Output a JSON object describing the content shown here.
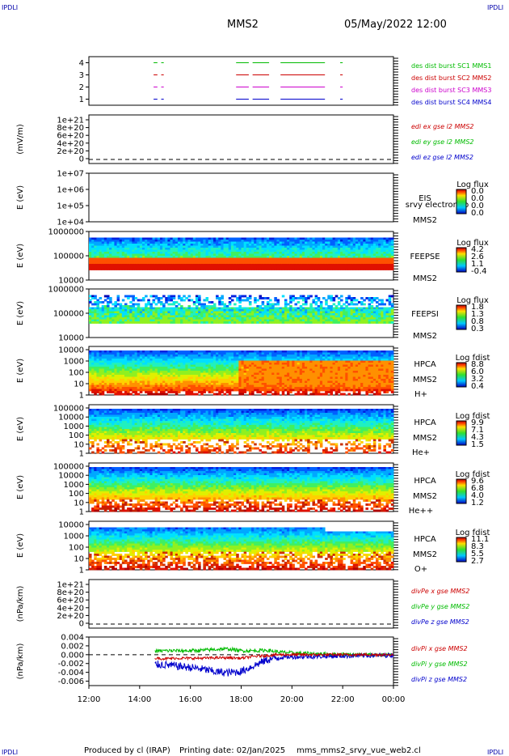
{
  "header": {
    "corner_tl": "IPDLI",
    "corner_tr": "IPDLI",
    "corner_bl": "IPDLI",
    "corner_br": "IPDLI",
    "title": "MMS2",
    "date": "05/May/2022 12:00"
  },
  "footer": {
    "produced_by": "Produced by cl (IRAP)",
    "printing_date": "Printing date: 02/Jan/2025",
    "file": "mms_mms2_srvy_vue_web2.cl"
  },
  "colors": {
    "blue": "#0000cc",
    "red": "#cc0000",
    "magenta": "#cc00cc",
    "green": "#00bb00",
    "legend_blue": "#0000c8",
    "legend_red": "#c80000",
    "legend_green": "#00b400"
  },
  "chart_data": [
    {
      "type": "scatter",
      "panel": "burst",
      "ylim": [
        0.5,
        4.5
      ],
      "yticks": [
        "1",
        "2",
        "3",
        "4"
      ],
      "series": [
        {
          "name": "des dist burst SC1 MMS1",
          "color": "#00bb00",
          "y": 4,
          "segments": [
            [
              14.55,
              14.7
            ],
            [
              14.85,
              14.95
            ],
            [
              17.8,
              18.3
            ],
            [
              18.45,
              19.1
            ],
            [
              19.55,
              21.3
            ],
            [
              21.9,
              22.0
            ]
          ]
        },
        {
          "name": "des dist burst SC2 MMS2",
          "color": "#cc0000",
          "y": 3,
          "segments": [
            [
              14.55,
              14.7
            ],
            [
              14.85,
              14.95
            ],
            [
              17.8,
              18.3
            ],
            [
              18.45,
              19.1
            ],
            [
              19.55,
              21.3
            ],
            [
              21.9,
              22.0
            ]
          ]
        },
        {
          "name": "des dist burst SC3 MMS3",
          "color": "#cc00cc",
          "y": 2,
          "segments": [
            [
              14.55,
              14.7
            ],
            [
              14.85,
              14.95
            ],
            [
              17.8,
              18.3
            ],
            [
              18.45,
              19.1
            ],
            [
              19.55,
              21.3
            ],
            [
              21.9,
              22.0
            ]
          ]
        },
        {
          "name": "des dist burst SC4 MMS4",
          "color": "#0000cc",
          "y": 1,
          "segments": [
            [
              14.55,
              14.7
            ],
            [
              14.85,
              14.95
            ],
            [
              17.8,
              18.3
            ],
            [
              18.45,
              19.1
            ],
            [
              19.55,
              21.3
            ],
            [
              21.9,
              22.0
            ]
          ]
        }
      ]
    },
    {
      "type": "line",
      "panel": "edi",
      "ylabel": "(mV/m)",
      "yticks": [
        "0",
        "2e+20",
        "4e+20",
        "6e+20",
        "8e+20",
        "1e+21"
      ],
      "series": [
        {
          "name": "edi ex gse l2 MMS2",
          "color": "#cc0000"
        },
        {
          "name": "edi ey gse l2 MMS2",
          "color": "#00bb00"
        },
        {
          "name": "edi ez gse l2 MMS2",
          "color": "#0000cc"
        }
      ]
    },
    {
      "type": "heatmap",
      "panel": "eis",
      "ylabel": "E (eV)",
      "yticks": [
        "1e+04",
        "1e+05",
        "1e+06",
        "1e+07"
      ],
      "labels": [
        "EIS",
        "srvy electron to",
        "MMS2"
      ],
      "colorbar": {
        "title": "Log flux",
        "ticks": [
          "0.0",
          "0.0",
          "0.0",
          "0.0"
        ]
      }
    },
    {
      "type": "heatmap",
      "panel": "feepse",
      "ylabel": "E (eV)",
      "yticks": [
        "10000",
        "100000",
        "1000000"
      ],
      "labels": [
        "FEEPSE",
        "MMS2"
      ],
      "colorbar": {
        "title": "Log flux",
        "ticks": [
          "4.2",
          "2.6",
          "1.1",
          "-0.4"
        ]
      }
    },
    {
      "type": "heatmap",
      "panel": "feepsi",
      "ylabel": "E (eV)",
      "yticks": [
        "10000",
        "100000",
        "1000000"
      ],
      "labels": [
        "FEEPSI",
        "MMS2"
      ],
      "colorbar": {
        "title": "Log flux",
        "ticks": [
          "1.8",
          "1.3",
          "0.8",
          "0.3"
        ]
      }
    },
    {
      "type": "heatmap",
      "panel": "hpca_h",
      "ylabel": "E (eV)",
      "yticks": [
        "1",
        "10",
        "100",
        "1000",
        "10000"
      ],
      "labels": [
        "HPCA",
        "MMS2",
        "H+"
      ],
      "colorbar": {
        "title": "Log fdist",
        "ticks": [
          "8.8",
          "6.0",
          "3.2",
          "0.4"
        ]
      }
    },
    {
      "type": "heatmap",
      "panel": "hpca_he",
      "ylabel": "E (eV)",
      "yticks": [
        "1",
        "10",
        "100",
        "1000",
        "10000",
        "100000"
      ],
      "labels": [
        "HPCA",
        "MMS2",
        "He+"
      ],
      "colorbar": {
        "title": "Log fdist",
        "ticks": [
          "9.9",
          "7.1",
          "4.3",
          "1.5"
        ]
      }
    },
    {
      "type": "heatmap",
      "panel": "hpca_hepp",
      "ylabel": "E (eV)",
      "yticks": [
        "1",
        "10",
        "100",
        "1000",
        "10000",
        "100000"
      ],
      "labels": [
        "HPCA",
        "MMS2",
        "He++"
      ],
      "colorbar": {
        "title": "Log fdist",
        "ticks": [
          "9.6",
          "6.8",
          "4.0",
          "1.2"
        ]
      }
    },
    {
      "type": "heatmap",
      "panel": "hpca_o",
      "ylabel": "E (eV)",
      "yticks": [
        "1",
        "10",
        "100",
        "1000",
        "10000"
      ],
      "labels": [
        "HPCA",
        "MMS2",
        "O+"
      ],
      "colorbar": {
        "title": "Log fdist",
        "ticks": [
          "11.1",
          "8.3",
          "5.5",
          "2.7"
        ]
      }
    },
    {
      "type": "line",
      "panel": "divpe",
      "ylabel": "(nPa/km)",
      "yticks": [
        "0",
        "2e+20",
        "4e+20",
        "6e+20",
        "8e+20",
        "1e+21"
      ],
      "series": [
        {
          "name": "divPe x gse MMS2",
          "color": "#cc0000"
        },
        {
          "name": "divPe y gse MMS2",
          "color": "#00bb00"
        },
        {
          "name": "divPe z gse MMS2",
          "color": "#0000cc"
        }
      ]
    },
    {
      "type": "line",
      "panel": "divpi",
      "ylabel": "(nPa/km)",
      "ylim": [
        -0.007,
        0.004
      ],
      "yticks": [
        "-0.006",
        "-0.004",
        "-0.002",
        "0.000",
        "0.002",
        "0.004"
      ],
      "xticks": [
        "12:00",
        "14:00",
        "16:00",
        "18:00",
        "20:00",
        "22:00",
        "00:00"
      ],
      "series": [
        {
          "name": "divPi x gse MMS2",
          "color": "#cc0000",
          "x": [
            14.6,
            15.0,
            15.5,
            16.0,
            16.5,
            17.0,
            17.5,
            18.0,
            18.5,
            19.0,
            19.5,
            20.0,
            21.0,
            22.0,
            23.0,
            24.0
          ],
          "values": [
            -0.0008,
            -0.0009,
            -0.0008,
            -0.0008,
            -0.0008,
            -0.0007,
            -0.0007,
            -0.0008,
            -0.0004,
            -0.0002,
            0.0,
            0.0,
            0.0,
            0.0,
            0.0,
            0.0
          ]
        },
        {
          "name": "divPi y gse MMS2",
          "color": "#00bb00",
          "x": [
            14.6,
            15.0,
            15.5,
            16.0,
            16.5,
            17.0,
            17.5,
            18.0,
            18.5,
            19.0,
            19.5,
            20.0,
            21.0,
            22.0,
            23.0,
            24.0
          ],
          "values": [
            0.0008,
            0.0009,
            0.0009,
            0.0009,
            0.001,
            0.0012,
            0.0013,
            0.0009,
            0.0009,
            0.001,
            0.0006,
            0.0004,
            0.0002,
            0.0001,
            0.0,
            0.0
          ]
        },
        {
          "name": "divPi z gse MMS2",
          "color": "#0000cc",
          "x": [
            14.6,
            15.0,
            15.5,
            16.0,
            16.5,
            17.0,
            17.5,
            18.0,
            18.5,
            19.0,
            19.5,
            20.0,
            21.0,
            22.0,
            23.0,
            24.0
          ],
          "values": [
            -0.0022,
            -0.0023,
            -0.0026,
            -0.0029,
            -0.0033,
            -0.0039,
            -0.0041,
            -0.0038,
            -0.0025,
            -0.0012,
            -0.0006,
            -0.0005,
            -0.0004,
            -0.0003,
            -0.0002,
            -0.0001
          ]
        }
      ]
    }
  ]
}
